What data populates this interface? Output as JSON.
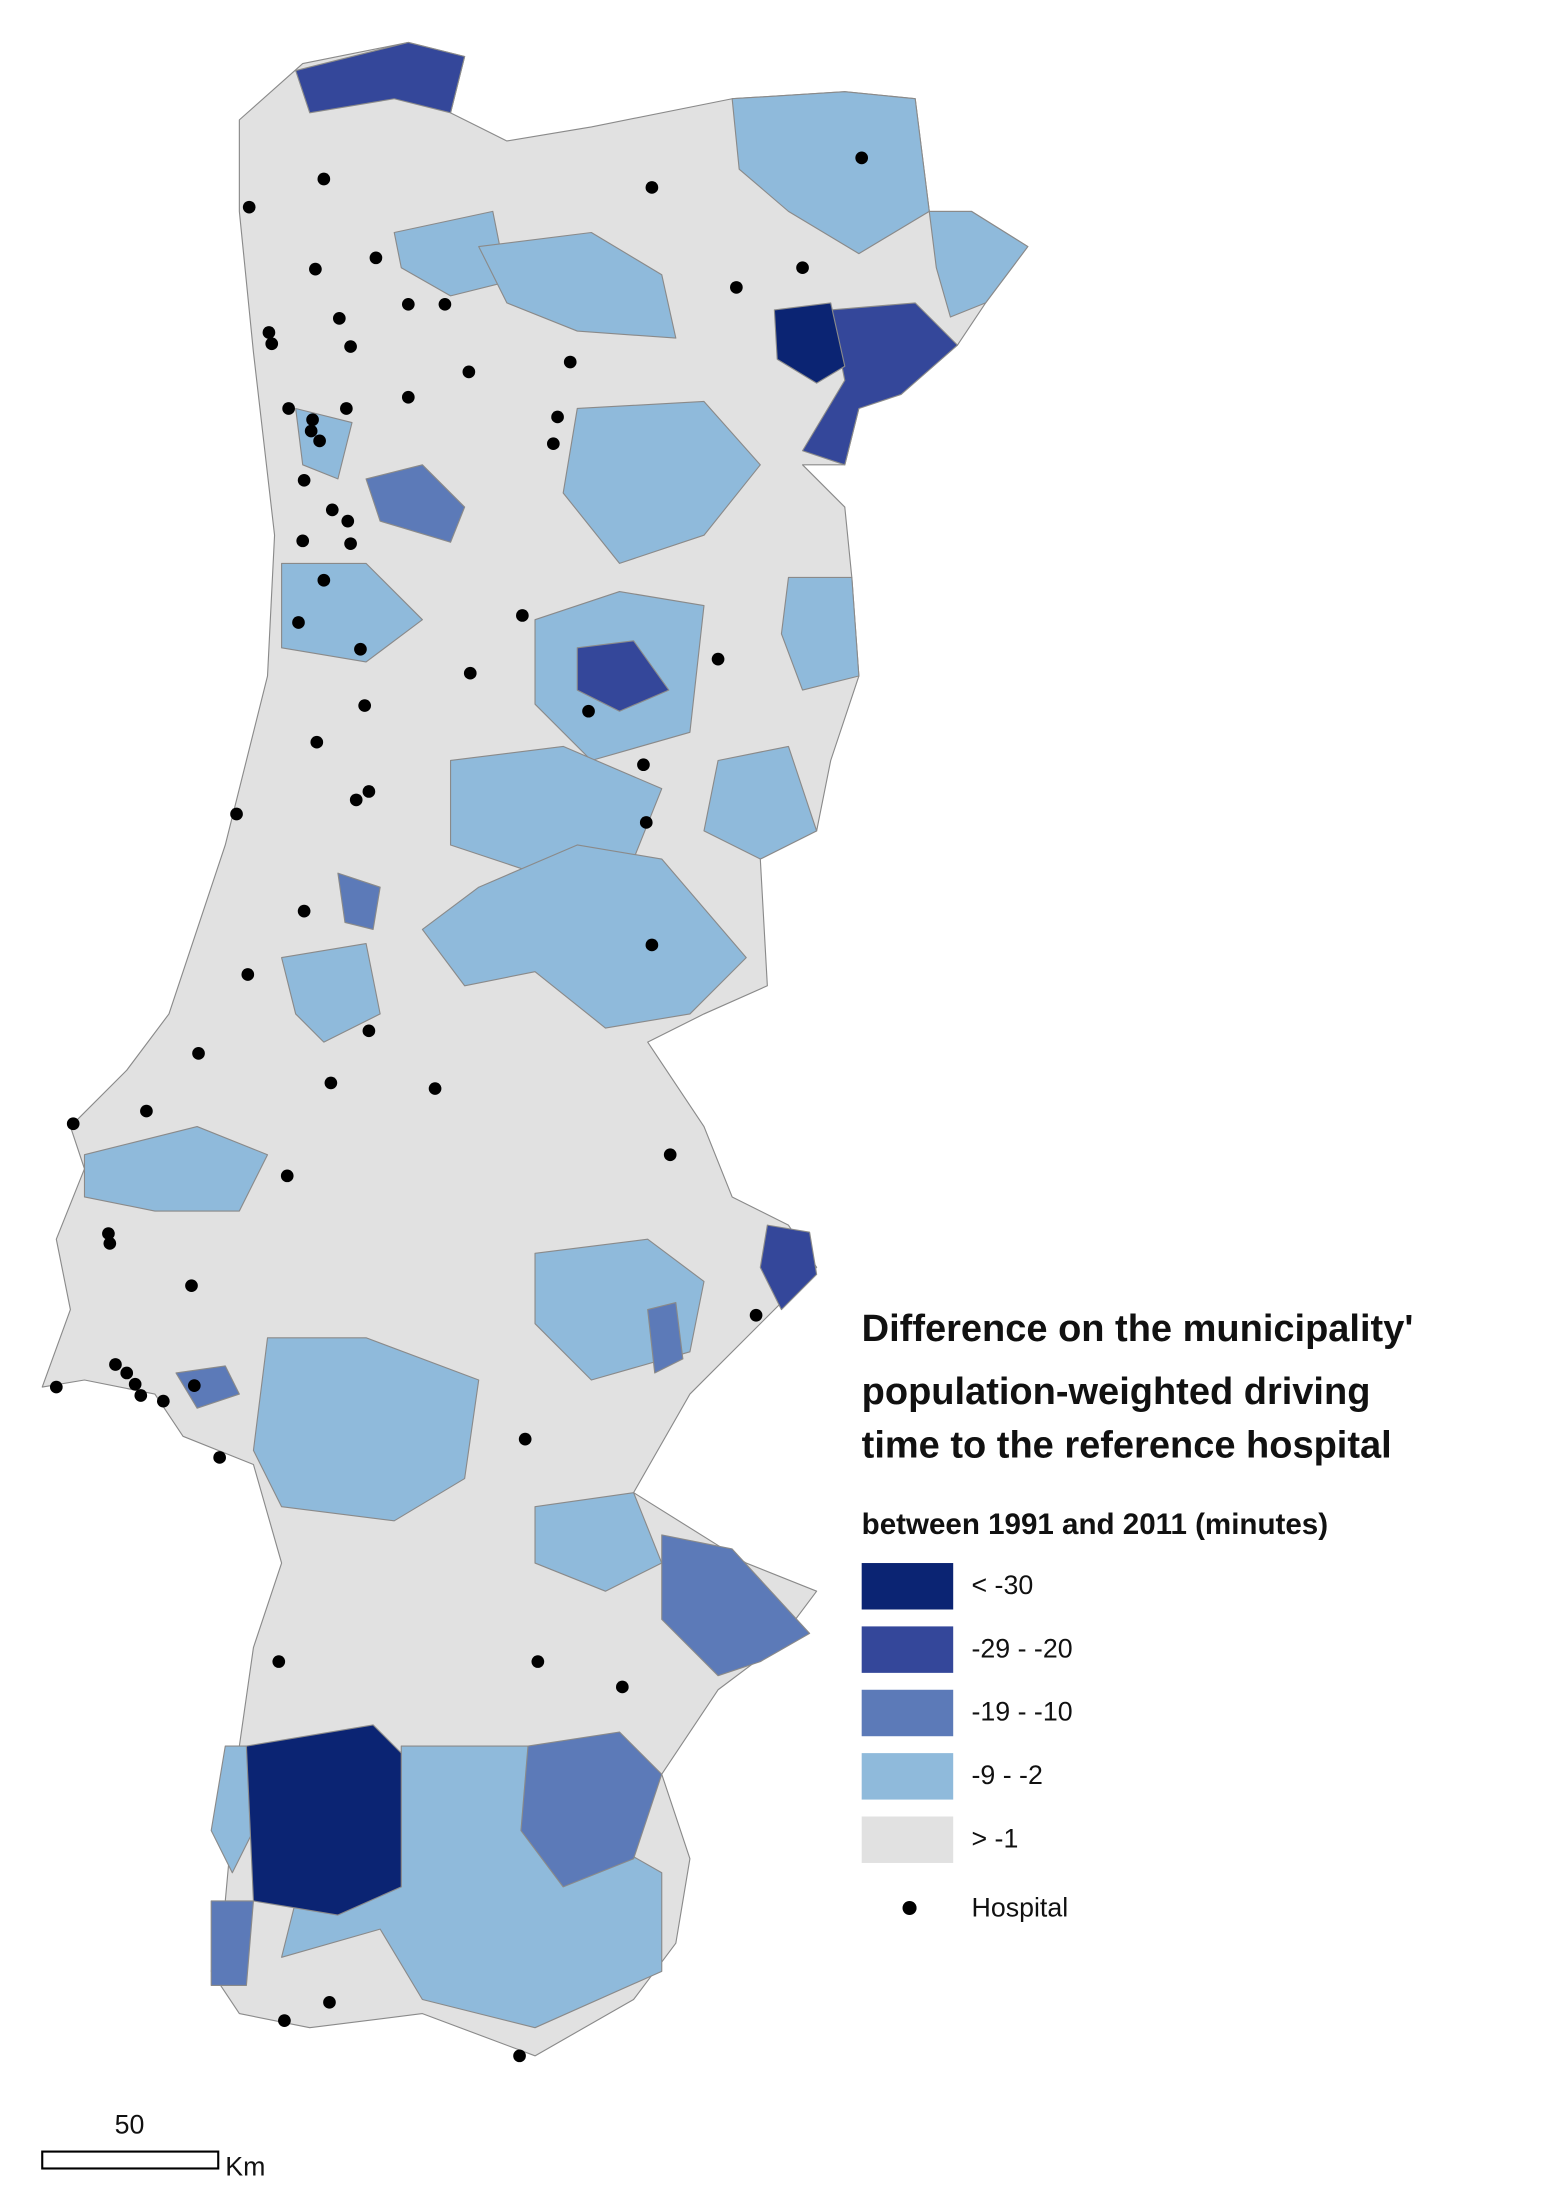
{
  "legend": {
    "title_lines": [
      "Difference on the municipality'",
      "population-weighted driving",
      "time to the reference hospital"
    ],
    "subtitle": "between 1991 and 2011 (minutes)",
    "items": [
      {
        "label": "< -30",
        "color": "#0b2473"
      },
      {
        "label": "-29 - -20",
        "color": "#34479a"
      },
      {
        "label": "-19 - -10",
        "color": "#5c7ab8"
      },
      {
        "label": "-9 - -2",
        "color": "#8fbadb"
      },
      {
        "label": "> -1",
        "color": "#e1e1e1"
      }
    ],
    "hospital": "Hospital"
  },
  "scale_bar": {
    "value_label": "50",
    "unit": "Km"
  }
}
